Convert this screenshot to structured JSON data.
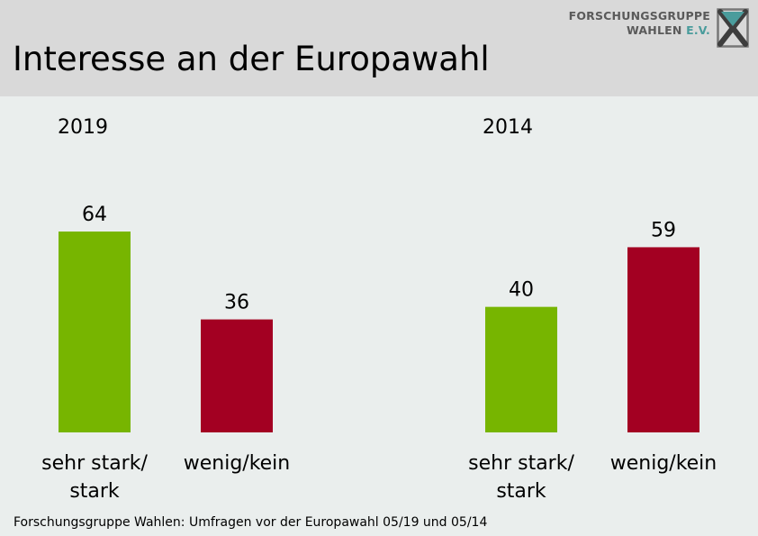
{
  "header": {
    "title": "Interesse an der Europawahl",
    "logo_line1": "FORSCHUNGSGRUPPE",
    "logo_line2_a": "WAHLEN",
    "logo_line2_b": "E.V."
  },
  "footer": {
    "source": "Forschungsgruppe Wahlen: Umfragen vor der Europawahl 05/19 und 05/14"
  },
  "colors": {
    "sehr_stark": "#77b500",
    "wenig_kein": "#a30022"
  },
  "chart_data": [
    {
      "type": "bar",
      "title": "2019",
      "categories": [
        "sehr stark/ stark",
        "wenig/kein"
      ],
      "category_lines": [
        [
          "sehr stark/",
          "stark"
        ],
        [
          "wenig/kein"
        ]
      ],
      "values": [
        64,
        36
      ],
      "ylim": [
        0,
        64
      ],
      "grid": false
    },
    {
      "type": "bar",
      "title": "2014",
      "categories": [
        "sehr stark/ stark",
        "wenig/kein"
      ],
      "category_lines": [
        [
          "sehr stark/",
          "stark"
        ],
        [
          "wenig/kein"
        ]
      ],
      "values": [
        40,
        59
      ],
      "ylim": [
        0,
        64
      ],
      "grid": false
    }
  ]
}
